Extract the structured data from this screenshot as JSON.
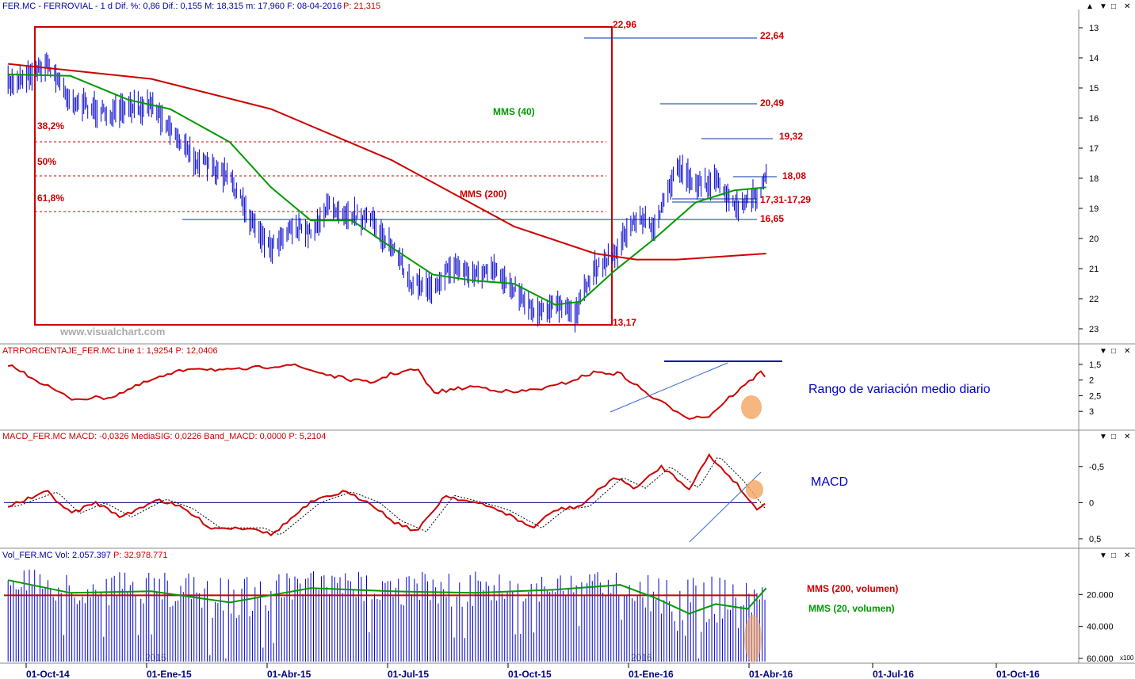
{
  "panels": {
    "price": {
      "header": "FER.MC - FERROVIAL - 1 d  Dif. %: 0,86  Dif.: 0,155  M: 18,315  m: 17,960  F: 08-04-2016",
      "header_p": "P: 21,315"
    },
    "atr": {
      "header": "ATRPORCENTAJE_FER.MC  Line 1: 1,9254  P: 12,0406",
      "title": "Rango de variación medio diario"
    },
    "macd": {
      "header": "MACD_FER.MC  MACD: -0,0326  MediaSIG: 0,0226  Band_MACD: 0,0000  P: 5,2104",
      "title": "MACD"
    },
    "vol": {
      "header_prefix": "Vol_FER.MC  Vol: 2.057.397",
      "header_p": "P: 32.978.771",
      "label_200": "MMS (200, volumen)",
      "label_20": "MMS (20, volumen)",
      "scale_note": "x100"
    }
  },
  "watermark": "www.visualchart.com",
  "year_marks": [
    "2015",
    "2016"
  ],
  "window_buttons": [
    "▲",
    "▼",
    "□",
    "✕"
  ],
  "colors": {
    "price": "#0000cc",
    "mms40": "#009900",
    "mms200": "#cc0000",
    "levels": "#cc0000",
    "support": "#0033aa",
    "highlight": "#f4a460"
  },
  "chart_data": [
    {
      "type": "line",
      "name": "price",
      "x": [
        "01-Oct-14",
        "01-Ene-15",
        "01-Abr-15",
        "01-Jul-15",
        "01-Oct-15",
        "01-Ene-16",
        "01-Abr-16",
        "01-Jul-16",
        "01-Oct-16"
      ],
      "ylim": [
        12.5,
        23.3
      ],
      "yticks": [
        "23",
        "22",
        "21",
        "20",
        "19",
        "18",
        "17",
        "16",
        "15",
        "14",
        "13"
      ],
      "legend": [
        "MMS (40)",
        "MMS (200)"
      ],
      "fib_labels": [
        "38,2%",
        "50%",
        "61,8%"
      ],
      "level_labels": [
        "22,96",
        "22,64",
        "20,49",
        "19,32",
        "18,08",
        "17,31-17,29",
        "16,65",
        "13,17"
      ],
      "price_series": [
        [
          "2014-09-15",
          14.9
        ],
        [
          "2014-10-15",
          14.2
        ],
        [
          "2014-11-01",
          15.4
        ],
        [
          "2014-12-01",
          15.9
        ],
        [
          "2015-01-01",
          15.5
        ],
        [
          "2015-02-01",
          17.3
        ],
        [
          "2015-03-01",
          18.0
        ],
        [
          "2015-03-16",
          19.3
        ],
        [
          "2015-04-01",
          20.3
        ],
        [
          "2015-04-16",
          19.6
        ],
        [
          "2015-05-01",
          19.8
        ],
        [
          "2015-05-15",
          18.9
        ],
        [
          "2015-06-01",
          19.2
        ],
        [
          "2015-06-16",
          19.4
        ],
        [
          "2015-07-01",
          20.3
        ],
        [
          "2015-07-16",
          21.5
        ],
        [
          "2015-08-01",
          21.6
        ],
        [
          "2015-08-16",
          20.9
        ],
        [
          "2015-09-01",
          21.2
        ],
        [
          "2015-09-16",
          21.1
        ],
        [
          "2015-10-01",
          21.6
        ],
        [
          "2015-10-16",
          22.4
        ],
        [
          "2015-11-01",
          22.2
        ],
        [
          "2015-11-16",
          22.5
        ],
        [
          "2015-12-01",
          21.0
        ],
        [
          "2015-12-16",
          20.5
        ],
        [
          "2016-01-01",
          19.3
        ],
        [
          "2016-01-16",
          19.6
        ],
        [
          "2016-02-01",
          17.6
        ],
        [
          "2016-02-16",
          18.2
        ],
        [
          "2016-03-01",
          18.1
        ],
        [
          "2016-03-16",
          19.0
        ],
        [
          "2016-04-01",
          18.6
        ],
        [
          "2016-04-08",
          17.98
        ]
      ],
      "mms40": [
        [
          "2014-09-15",
          14.55
        ],
        [
          "2014-11-01",
          14.6
        ],
        [
          "2014-12-15",
          15.4
        ],
        [
          "2015-01-15",
          15.7
        ],
        [
          "2015-03-01",
          16.8
        ],
        [
          "2015-04-01",
          18.3
        ],
        [
          "2015-05-01",
          19.4
        ],
        [
          "2015-06-01",
          19.4
        ],
        [
          "2015-07-01",
          20.3
        ],
        [
          "2015-08-01",
          21.2
        ],
        [
          "2015-09-01",
          21.4
        ],
        [
          "2015-10-01",
          21.5
        ],
        [
          "2015-11-01",
          22.2
        ],
        [
          "2015-11-20",
          22.1
        ],
        [
          "2015-12-15",
          21.1
        ],
        [
          "2016-01-15",
          20.0
        ],
        [
          "2016-02-15",
          18.8
        ],
        [
          "2016-03-15",
          18.4
        ],
        [
          "2016-04-08",
          18.3
        ]
      ],
      "mms200": [
        [
          "2014-09-15",
          14.2
        ],
        [
          "2015-01-01",
          14.7
        ],
        [
          "2015-04-01",
          15.7
        ],
        [
          "2015-07-01",
          17.4
        ],
        [
          "2015-10-01",
          19.6
        ],
        [
          "2015-12-01",
          20.5
        ],
        [
          "2016-01-01",
          20.7
        ],
        [
          "2016-02-01",
          20.7
        ],
        [
          "2016-04-08",
          20.5
        ]
      ]
    },
    {
      "type": "line",
      "name": "atr",
      "yticks": [
        "3",
        "2,5",
        "2",
        "1,5"
      ],
      "ylim": [
        1.3,
        3.4
      ],
      "series": [
        [
          "2014-09-15",
          1.5
        ],
        [
          "2014-10-15",
          2.2
        ],
        [
          "2014-11-01",
          2.6
        ],
        [
          "2014-12-01",
          2.55
        ],
        [
          "2015-01-01",
          2.0
        ],
        [
          "2015-02-01",
          1.6
        ],
        [
          "2015-03-01",
          1.7
        ],
        [
          "2015-04-15",
          1.5
        ],
        [
          "2015-05-20",
          1.9
        ],
        [
          "2015-06-15",
          2.1
        ],
        [
          "2015-07-01",
          1.8
        ],
        [
          "2015-07-20",
          1.65
        ],
        [
          "2015-08-01",
          2.4
        ],
        [
          "2015-09-01",
          2.2
        ],
        [
          "2015-10-01",
          2.4
        ],
        [
          "2015-11-01",
          2.2
        ],
        [
          "2015-12-01",
          1.75
        ],
        [
          "2015-12-20",
          1.8
        ],
        [
          "2016-01-15",
          2.6
        ],
        [
          "2016-02-10",
          3.2
        ],
        [
          "2016-02-25",
          3.15
        ],
        [
          "2016-03-10",
          2.6
        ],
        [
          "2016-03-25",
          2.1
        ],
        [
          "2016-04-05",
          1.7
        ],
        [
          "2016-04-08",
          1.93
        ]
      ]
    },
    {
      "type": "line",
      "name": "macd",
      "yticks": [
        "0,5",
        "0",
        "-0,5"
      ],
      "ylim": [
        -0.75,
        0.5
      ],
      "macd": [
        [
          "2014-09-15",
          0.05
        ],
        [
          "2014-10-15",
          -0.15
        ],
        [
          "2014-11-01",
          0.15
        ],
        [
          "2014-11-20",
          0.0
        ],
        [
          "2014-12-10",
          0.2
        ],
        [
          "2015-01-05",
          -0.05
        ],
        [
          "2015-01-25",
          0.08
        ],
        [
          "2015-02-15",
          0.35
        ],
        [
          "2015-03-20",
          0.35
        ],
        [
          "2015-04-01",
          0.45
        ],
        [
          "2015-05-01",
          0.0
        ],
        [
          "2015-05-25",
          -0.15
        ],
        [
          "2015-06-15",
          0.0
        ],
        [
          "2015-07-01",
          0.25
        ],
        [
          "2015-07-20",
          0.4
        ],
        [
          "2015-08-10",
          -0.1
        ],
        [
          "2015-09-01",
          0.0
        ],
        [
          "2015-09-20",
          0.1
        ],
        [
          "2015-10-15",
          0.35
        ],
        [
          "2015-11-01",
          0.1
        ],
        [
          "2015-11-20",
          0.05
        ],
        [
          "2015-12-15",
          -0.35
        ],
        [
          "2016-01-01",
          -0.2
        ],
        [
          "2016-01-20",
          -0.5
        ],
        [
          "2016-02-10",
          -0.2
        ],
        [
          "2016-02-25",
          -0.65
        ],
        [
          "2016-03-15",
          -0.3
        ],
        [
          "2016-04-01",
          0.1
        ],
        [
          "2016-04-08",
          -0.03
        ]
      ]
    },
    {
      "type": "bar",
      "name": "volume",
      "yticks": [
        "60.000",
        "40.000",
        "20.000"
      ],
      "ylim": [
        0,
        62000
      ],
      "mms200": 20500,
      "mms20": [
        [
          "2014-09-15",
          11000
        ],
        [
          "2014-11-01",
          19000
        ],
        [
          "2015-01-01",
          18000
        ],
        [
          "2015-03-01",
          25000
        ],
        [
          "2015-05-01",
          16000
        ],
        [
          "2015-07-01",
          18000
        ],
        [
          "2015-09-01",
          19000
        ],
        [
          "2015-11-01",
          17000
        ],
        [
          "2015-12-20",
          14000
        ],
        [
          "2016-01-15",
          22000
        ],
        [
          "2016-02-10",
          32000
        ],
        [
          "2016-03-01",
          26000
        ],
        [
          "2016-03-25",
          29000
        ],
        [
          "2016-04-08",
          16000
        ]
      ]
    }
  ]
}
